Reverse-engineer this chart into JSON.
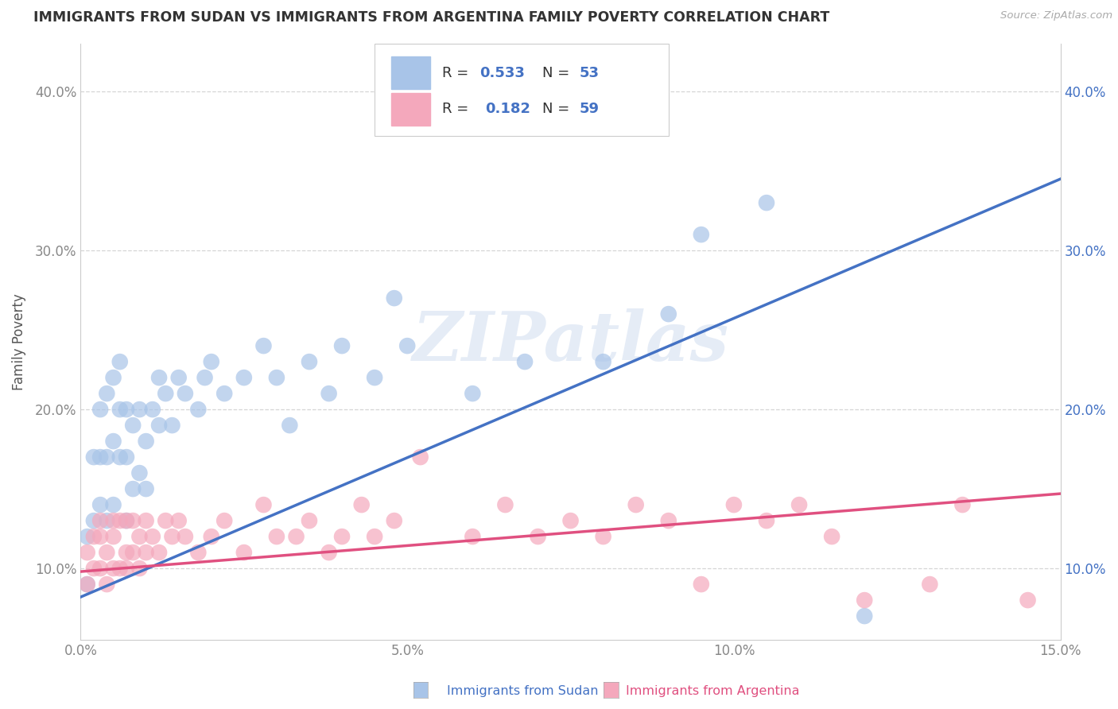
{
  "title": "IMMIGRANTS FROM SUDAN VS IMMIGRANTS FROM ARGENTINA FAMILY POVERTY CORRELATION CHART",
  "source": "Source: ZipAtlas.com",
  "ylabel": "Family Poverty",
  "xlim": [
    0.0,
    0.15
  ],
  "ylim": [
    0.055,
    0.43
  ],
  "xticks": [
    0.0,
    0.05,
    0.1,
    0.15
  ],
  "xticklabels": [
    "0.0%",
    "5.0%",
    "10.0%",
    "15.0%"
  ],
  "yticks": [
    0.1,
    0.2,
    0.3,
    0.4
  ],
  "yticklabels": [
    "10.0%",
    "20.0%",
    "30.0%",
    "40.0%"
  ],
  "legend1_r": "0.533",
  "legend1_n": "53",
  "legend2_r": "0.182",
  "legend2_n": "59",
  "sudan_color": "#a8c4e8",
  "argentina_color": "#f4a8bc",
  "sudan_line_color": "#4472c4",
  "argentina_line_color": "#e05080",
  "watermark": "ZIPatlas",
  "sudan_line_x": [
    0.0,
    0.15
  ],
  "sudan_line_y": [
    0.082,
    0.345
  ],
  "argentina_line_x": [
    0.0,
    0.15
  ],
  "argentina_line_y": [
    0.098,
    0.147
  ],
  "sudan_points_x": [
    0.001,
    0.001,
    0.002,
    0.002,
    0.003,
    0.003,
    0.003,
    0.004,
    0.004,
    0.004,
    0.005,
    0.005,
    0.005,
    0.006,
    0.006,
    0.006,
    0.007,
    0.007,
    0.007,
    0.008,
    0.008,
    0.009,
    0.009,
    0.01,
    0.01,
    0.011,
    0.012,
    0.012,
    0.013,
    0.014,
    0.015,
    0.016,
    0.018,
    0.019,
    0.02,
    0.022,
    0.025,
    0.028,
    0.03,
    0.032,
    0.035,
    0.038,
    0.04,
    0.045,
    0.048,
    0.05,
    0.06,
    0.068,
    0.08,
    0.09,
    0.095,
    0.105,
    0.12
  ],
  "sudan_points_y": [
    0.09,
    0.12,
    0.13,
    0.17,
    0.14,
    0.17,
    0.2,
    0.13,
    0.17,
    0.21,
    0.14,
    0.18,
    0.22,
    0.17,
    0.2,
    0.23,
    0.13,
    0.17,
    0.2,
    0.15,
    0.19,
    0.16,
    0.2,
    0.15,
    0.18,
    0.2,
    0.19,
    0.22,
    0.21,
    0.19,
    0.22,
    0.21,
    0.2,
    0.22,
    0.23,
    0.21,
    0.22,
    0.24,
    0.22,
    0.19,
    0.23,
    0.21,
    0.24,
    0.22,
    0.27,
    0.24,
    0.21,
    0.23,
    0.23,
    0.26,
    0.31,
    0.33,
    0.07
  ],
  "argentina_points_x": [
    0.001,
    0.001,
    0.002,
    0.002,
    0.003,
    0.003,
    0.003,
    0.004,
    0.004,
    0.005,
    0.005,
    0.005,
    0.006,
    0.006,
    0.007,
    0.007,
    0.007,
    0.008,
    0.008,
    0.009,
    0.009,
    0.01,
    0.01,
    0.011,
    0.012,
    0.013,
    0.014,
    0.015,
    0.016,
    0.018,
    0.02,
    0.022,
    0.025,
    0.028,
    0.03,
    0.033,
    0.035,
    0.038,
    0.04,
    0.043,
    0.045,
    0.048,
    0.052,
    0.06,
    0.065,
    0.07,
    0.075,
    0.08,
    0.085,
    0.09,
    0.095,
    0.1,
    0.105,
    0.11,
    0.115,
    0.12,
    0.13,
    0.135,
    0.145
  ],
  "argentina_points_y": [
    0.09,
    0.11,
    0.1,
    0.12,
    0.1,
    0.12,
    0.13,
    0.09,
    0.11,
    0.1,
    0.12,
    0.13,
    0.1,
    0.13,
    0.11,
    0.13,
    0.1,
    0.11,
    0.13,
    0.1,
    0.12,
    0.11,
    0.13,
    0.12,
    0.11,
    0.13,
    0.12,
    0.13,
    0.12,
    0.11,
    0.12,
    0.13,
    0.11,
    0.14,
    0.12,
    0.12,
    0.13,
    0.11,
    0.12,
    0.14,
    0.12,
    0.13,
    0.17,
    0.12,
    0.14,
    0.12,
    0.13,
    0.12,
    0.14,
    0.13,
    0.09,
    0.14,
    0.13,
    0.14,
    0.12,
    0.08,
    0.09,
    0.14,
    0.08
  ],
  "background_color": "#ffffff",
  "grid_color": "#cccccc",
  "title_color": "#333333",
  "axis_label_color": "#555555",
  "tick_color": "#888888",
  "right_tick_color": "#4472c4"
}
